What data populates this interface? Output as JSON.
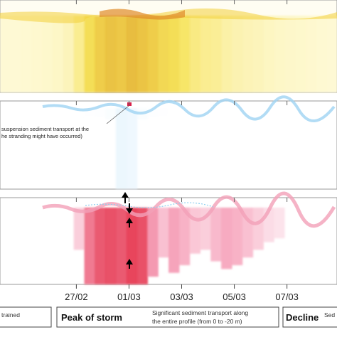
{
  "chart_data": {
    "type": "heatmap",
    "x_axis": {
      "tick_labels": [
        "27/02",
        "01/03",
        "03/03",
        "05/03",
        "07/03"
      ],
      "tick_days": [
        0,
        2,
        4,
        6,
        8
      ],
      "range_days": [
        -2.9,
        9.9
      ]
    },
    "panels": [
      {
        "name": "top",
        "colormap": [
          "#fffbe0",
          "#f5e04a",
          "#e0a420"
        ],
        "intensity": [
          0.05,
          0.05,
          0.06,
          0.07,
          0.08,
          0.1,
          0.14,
          0.3,
          0.55,
          0.7,
          0.8,
          0.75,
          0.85,
          0.78,
          0.7,
          0.6,
          0.55,
          0.45,
          0.35,
          0.3,
          0.28,
          0.22,
          0.18,
          0.16,
          0.14,
          0.12,
          0.1,
          0.09,
          0.08,
          0.07,
          0.06,
          0.05
        ]
      },
      {
        "name": "middle",
        "colormap": [
          "#ffffff",
          "#d9eefb",
          "#8cc8ee"
        ],
        "intensity": [
          0,
          0,
          0,
          0,
          0,
          0,
          0,
          0,
          0.02,
          0.04,
          0.1,
          0.35,
          0.3,
          0.1,
          0.04,
          0.02,
          0,
          0,
          0,
          0,
          0,
          0,
          0,
          0,
          0,
          0,
          0,
          0,
          0,
          0,
          0,
          0
        ]
      },
      {
        "name": "bottom",
        "colormap": [
          "#fde8ef",
          "#f59ab4",
          "#e3263f"
        ],
        "intensity": [
          0,
          0,
          0,
          0,
          0,
          0,
          0,
          0.2,
          0.7,
          0.85,
          0.9,
          0.85,
          0.95,
          0.9,
          0.55,
          0.3,
          0.5,
          0.4,
          0.25,
          0.2,
          0.35,
          0.45,
          0.4,
          0.3,
          0.2,
          0.1,
          0.05,
          0,
          0,
          0,
          0,
          0
        ]
      }
    ],
    "annotation": {
      "line1": "suspension sediment transport at the",
      "line2": "he stranding might have occurred)"
    },
    "legend": [
      {
        "title": "",
        "desc": "trained"
      },
      {
        "title": "Peak of storm",
        "desc": "Significant sediment transport along",
        "desc2": "the entire profile (from 0 to -20 m)"
      },
      {
        "title": "Decline",
        "desc": "Sed"
      }
    ]
  }
}
